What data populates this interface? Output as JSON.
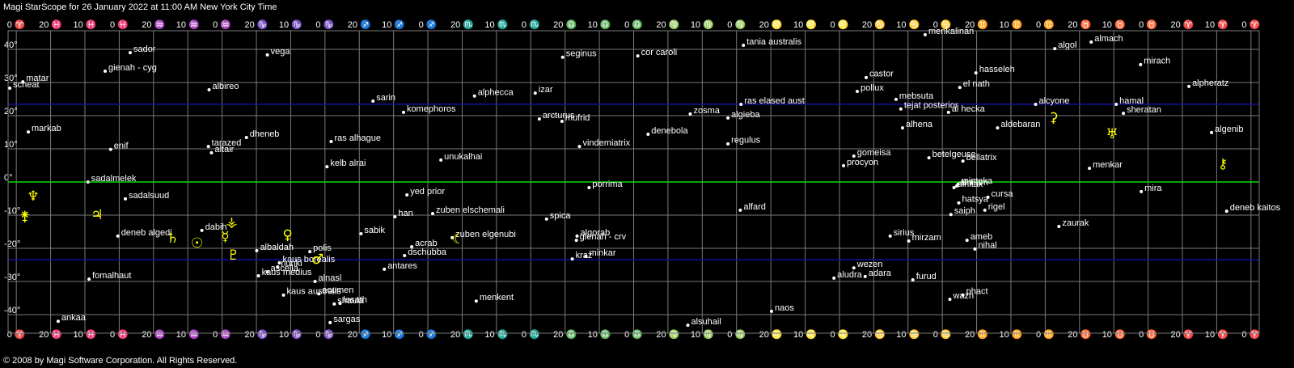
{
  "chart_data": {
    "type": "scatter",
    "title": "Magi StarScope for 26 January 2022 at 11:00 AM New York City Time",
    "footer": "© 2008 by Magi Software Corporation. All Rights Reserved.",
    "xlim": [
      362.4,
      -2.4
    ],
    "ylim": [
      -45.6,
      45.6
    ],
    "grid": true,
    "xticks": [
      {
        "value": 360,
        "label": "0 ♈"
      },
      {
        "value": 350,
        "label": "20 ♓"
      },
      {
        "value": 340,
        "label": "10 ♓"
      },
      {
        "value": 330,
        "label": "0 ♓"
      },
      {
        "value": 320,
        "label": "20 ♒"
      },
      {
        "value": 310,
        "label": "10 ♒"
      },
      {
        "value": 300,
        "label": "0 ♒"
      },
      {
        "value": 290,
        "label": "20 ♑"
      },
      {
        "value": 280,
        "label": "10 ♑"
      },
      {
        "value": 270,
        "label": "0 ♑"
      },
      {
        "value": 260,
        "label": "20 ♐"
      },
      {
        "value": 250,
        "label": "10 ♐"
      },
      {
        "value": 240,
        "label": "0 ♐"
      },
      {
        "value": 230,
        "label": "20 ♏"
      },
      {
        "value": 220,
        "label": "10 ♏"
      },
      {
        "value": 210,
        "label": "0 ♏"
      },
      {
        "value": 200,
        "label": "20 ♎"
      },
      {
        "value": 190,
        "label": "10 ♎"
      },
      {
        "value": 180,
        "label": "0 ♎"
      },
      {
        "value": 170,
        "label": "20 ♍"
      },
      {
        "value": 160,
        "label": "10 ♍"
      },
      {
        "value": 150,
        "label": "0 ♍"
      },
      {
        "value": 140,
        "label": "20 ♌"
      },
      {
        "value": 130,
        "label": "10 ♌"
      },
      {
        "value": 120,
        "label": "0 ♌"
      },
      {
        "value": 110,
        "label": "20 ♋"
      },
      {
        "value": 100,
        "label": "10 ♋"
      },
      {
        "value": 90,
        "label": "0 ♋"
      },
      {
        "value": 80,
        "label": "20 ♊"
      },
      {
        "value": 70,
        "label": "10 ♊"
      },
      {
        "value": 60,
        "label": "0 ♊"
      },
      {
        "value": 50,
        "label": "20 ♉"
      },
      {
        "value": 40,
        "label": "10 ♉"
      },
      {
        "value": 30,
        "label": "0 ♉"
      },
      {
        "value": 20,
        "label": "20 ♈"
      },
      {
        "value": 10,
        "label": "10 ♈"
      },
      {
        "value": 0,
        "label": "0 ♈"
      }
    ],
    "yticks": [
      {
        "value": 40,
        "label": "40°"
      },
      {
        "value": 30,
        "label": "30°"
      },
      {
        "value": 20,
        "label": "20°"
      },
      {
        "value": 10,
        "label": "10°"
      },
      {
        "value": 0,
        "label": "0°"
      },
      {
        "value": -10,
        "label": "-10°"
      },
      {
        "value": -20,
        "label": "-20°"
      },
      {
        "value": -30,
        "label": "-30°"
      },
      {
        "value": -40,
        "label": "-40°"
      }
    ],
    "reference_lines": [
      {
        "value": 23.44,
        "color": "#1010a0"
      },
      {
        "value": 0,
        "color": "#00dd00"
      },
      {
        "value": -23.44,
        "color": "#1010a0"
      }
    ],
    "stars": {
      "color": "#ffffff",
      "names": [
        "sador",
        "vega",
        "seginus",
        "cor caroli",
        "tania australis",
        "menkalinan",
        "algol",
        "almach",
        "mirach",
        "alpheratz",
        "castor",
        "hasseleh",
        "pollux",
        "el nath",
        "mebsuta",
        "tejat posterior",
        "al hecka",
        "alcyone",
        "hamal",
        "sheratan",
        "alhena",
        "aldebaran",
        "algenib",
        "scheat",
        "matar",
        "markab",
        "gienah - cyg",
        "albireo",
        "sarin",
        "alphecca",
        "izar",
        "komephoros",
        "arcturus",
        "mufrid",
        "zosma",
        "ras elased aust",
        "algieba",
        "denebola",
        "regulus",
        "vindemiatrix",
        "dheneb",
        "ras alhague",
        "tarazed",
        "altair",
        "enif",
        "unukalhai",
        "kelb alrai",
        "gomeisa",
        "procyon",
        "betelgeuse",
        "bellatrix",
        "menkar",
        "sadalmelek",
        "mintaka",
        "alnitak",
        "alnilam",
        "porrima",
        "yed prior",
        "sadalsuud",
        "cursa",
        "hatsya",
        "mira",
        "alfard",
        "zuben elschemali",
        "rigel",
        "saiph",
        "deneb kaitos",
        "han",
        "spica",
        "zaurak",
        "dabih",
        "deneb algedi",
        "sabik",
        "algorab",
        "gienah - crv",
        "sirius",
        "mirzam",
        "ameb",
        "nihal",
        "acrab",
        "zuben elgenubi",
        "albaldah",
        "polis",
        "dschubba",
        "kraz",
        "minkar",
        "kaus borealis",
        "nunki",
        "antares",
        "ascella",
        "kaus medius",
        "alnasl",
        "fomalhaut",
        "aludra",
        "wezen",
        "adara",
        "furud",
        "kaus australis",
        "acumen",
        "shaula",
        "lesath",
        "menkent",
        "wazn",
        "phact",
        "naos",
        "sargas",
        "alsuhail",
        "ankaa"
      ],
      "x": [
        326.8,
        286.8,
        200.7,
        178.8,
        148.0,
        95.0,
        57.2,
        46.6,
        32.2,
        18.1,
        112.2,
        80.2,
        114.8,
        84.9,
        103.5,
        102.1,
        88.2,
        62.8,
        39.3,
        37.2,
        101.6,
        73.9,
        11.5,
        361.9,
        358.1,
        356.5,
        334.1,
        303.8,
        256.0,
        226.4,
        208.7,
        247.1,
        207.5,
        200.9,
        163.5,
        148.7,
        152.5,
        175.8,
        152.5,
        195.8,
        292.9,
        268.2,
        304.0,
        303.1,
        332.5,
        236.2,
        269.4,
        115.8,
        118.8,
        93.9,
        84.0,
        47.1,
        339.1,
        85.4,
        86.6,
        85.8,
        193.0,
        246.1,
        328.2,
        76.7,
        85.2,
        32.0,
        148.9,
        238.6,
        77.6,
        87.5,
        7.1,
        249.6,
        205.4,
        56.0,
        305.9,
        330.4,
        259.5,
        196.5,
        196.7,
        105.2,
        99.8,
        82.8,
        80.5,
        244.7,
        232.9,
        289.9,
        274.4,
        246.8,
        197.9,
        193.9,
        283.3,
        283.8,
        252.7,
        286.8,
        289.4,
        272.9,
        338.8,
        121.6,
        115.8,
        112.5,
        98.6,
        282.1,
        271.8,
        267.3,
        265.6,
        225.9,
        87.8,
        84.0,
        139.8,
        268.5,
        164.2,
        347.8
      ],
      "y": [
        39.0,
        38.3,
        37.6,
        38.0,
        41.2,
        44.4,
        40.2,
        42.2,
        35.4,
        28.8,
        31.5,
        32.9,
        27.3,
        28.5,
        24.9,
        22.0,
        21.0,
        23.4,
        23.4,
        20.7,
        16.3,
        16.3,
        14.9,
        28.3,
        30.2,
        15.1,
        33.4,
        27.8,
        24.4,
        25.9,
        26.8,
        21.0,
        19.0,
        18.3,
        20.5,
        23.4,
        19.3,
        14.4,
        11.5,
        10.7,
        13.4,
        12.2,
        10.7,
        8.8,
        9.8,
        6.6,
        4.6,
        7.8,
        4.9,
        7.3,
        6.3,
        4.1,
        0,
        -0.7,
        -1.7,
        -1.2,
        -1.7,
        -3.9,
        -5.1,
        -4.6,
        -6.3,
        -2.9,
        -8.5,
        -9.5,
        -8.5,
        -9.8,
        -8.8,
        -10.5,
        -11.2,
        -13.4,
        -14.6,
        -16.3,
        -15.6,
        -16.3,
        -17.6,
        -16.3,
        -17.8,
        -17.6,
        -20.2,
        -19.5,
        -16.8,
        -20.7,
        -21.0,
        -22.2,
        -23.2,
        -22.4,
        -24.4,
        -25.6,
        -26.3,
        -27.1,
        -28.3,
        -30.0,
        -29.3,
        -29.0,
        -25.9,
        -28.5,
        -29.5,
        -34.1,
        -33.7,
        -36.8,
        -36.6,
        -35.9,
        -35.4,
        -34.1,
        -39.0,
        -42.4,
        -43.2,
        -42.0
      ]
    },
    "planets": {
      "color": "#ffff00",
      "symbols": [
        "♆",
        "⚵",
        "♃",
        "♄",
        "☉",
        "☿",
        "⚶",
        "♇",
        "♀",
        "♂",
        "☾",
        "⚳",
        "♅",
        "⚷"
      ],
      "x": [
        355.1,
        357.5,
        336.5,
        314.4,
        307.3,
        299.1,
        297.2,
        296.7,
        280.9,
        272.2,
        231.1,
        57.6,
        40.5,
        8.2
      ],
      "y": [
        -4.4,
        -10.5,
        -10.0,
        -17.1,
        -18.5,
        -16.6,
        -12.2,
        -22.2,
        -16.1,
        -23.4,
        -17.3,
        19.3,
        14.4,
        5.4
      ]
    }
  }
}
